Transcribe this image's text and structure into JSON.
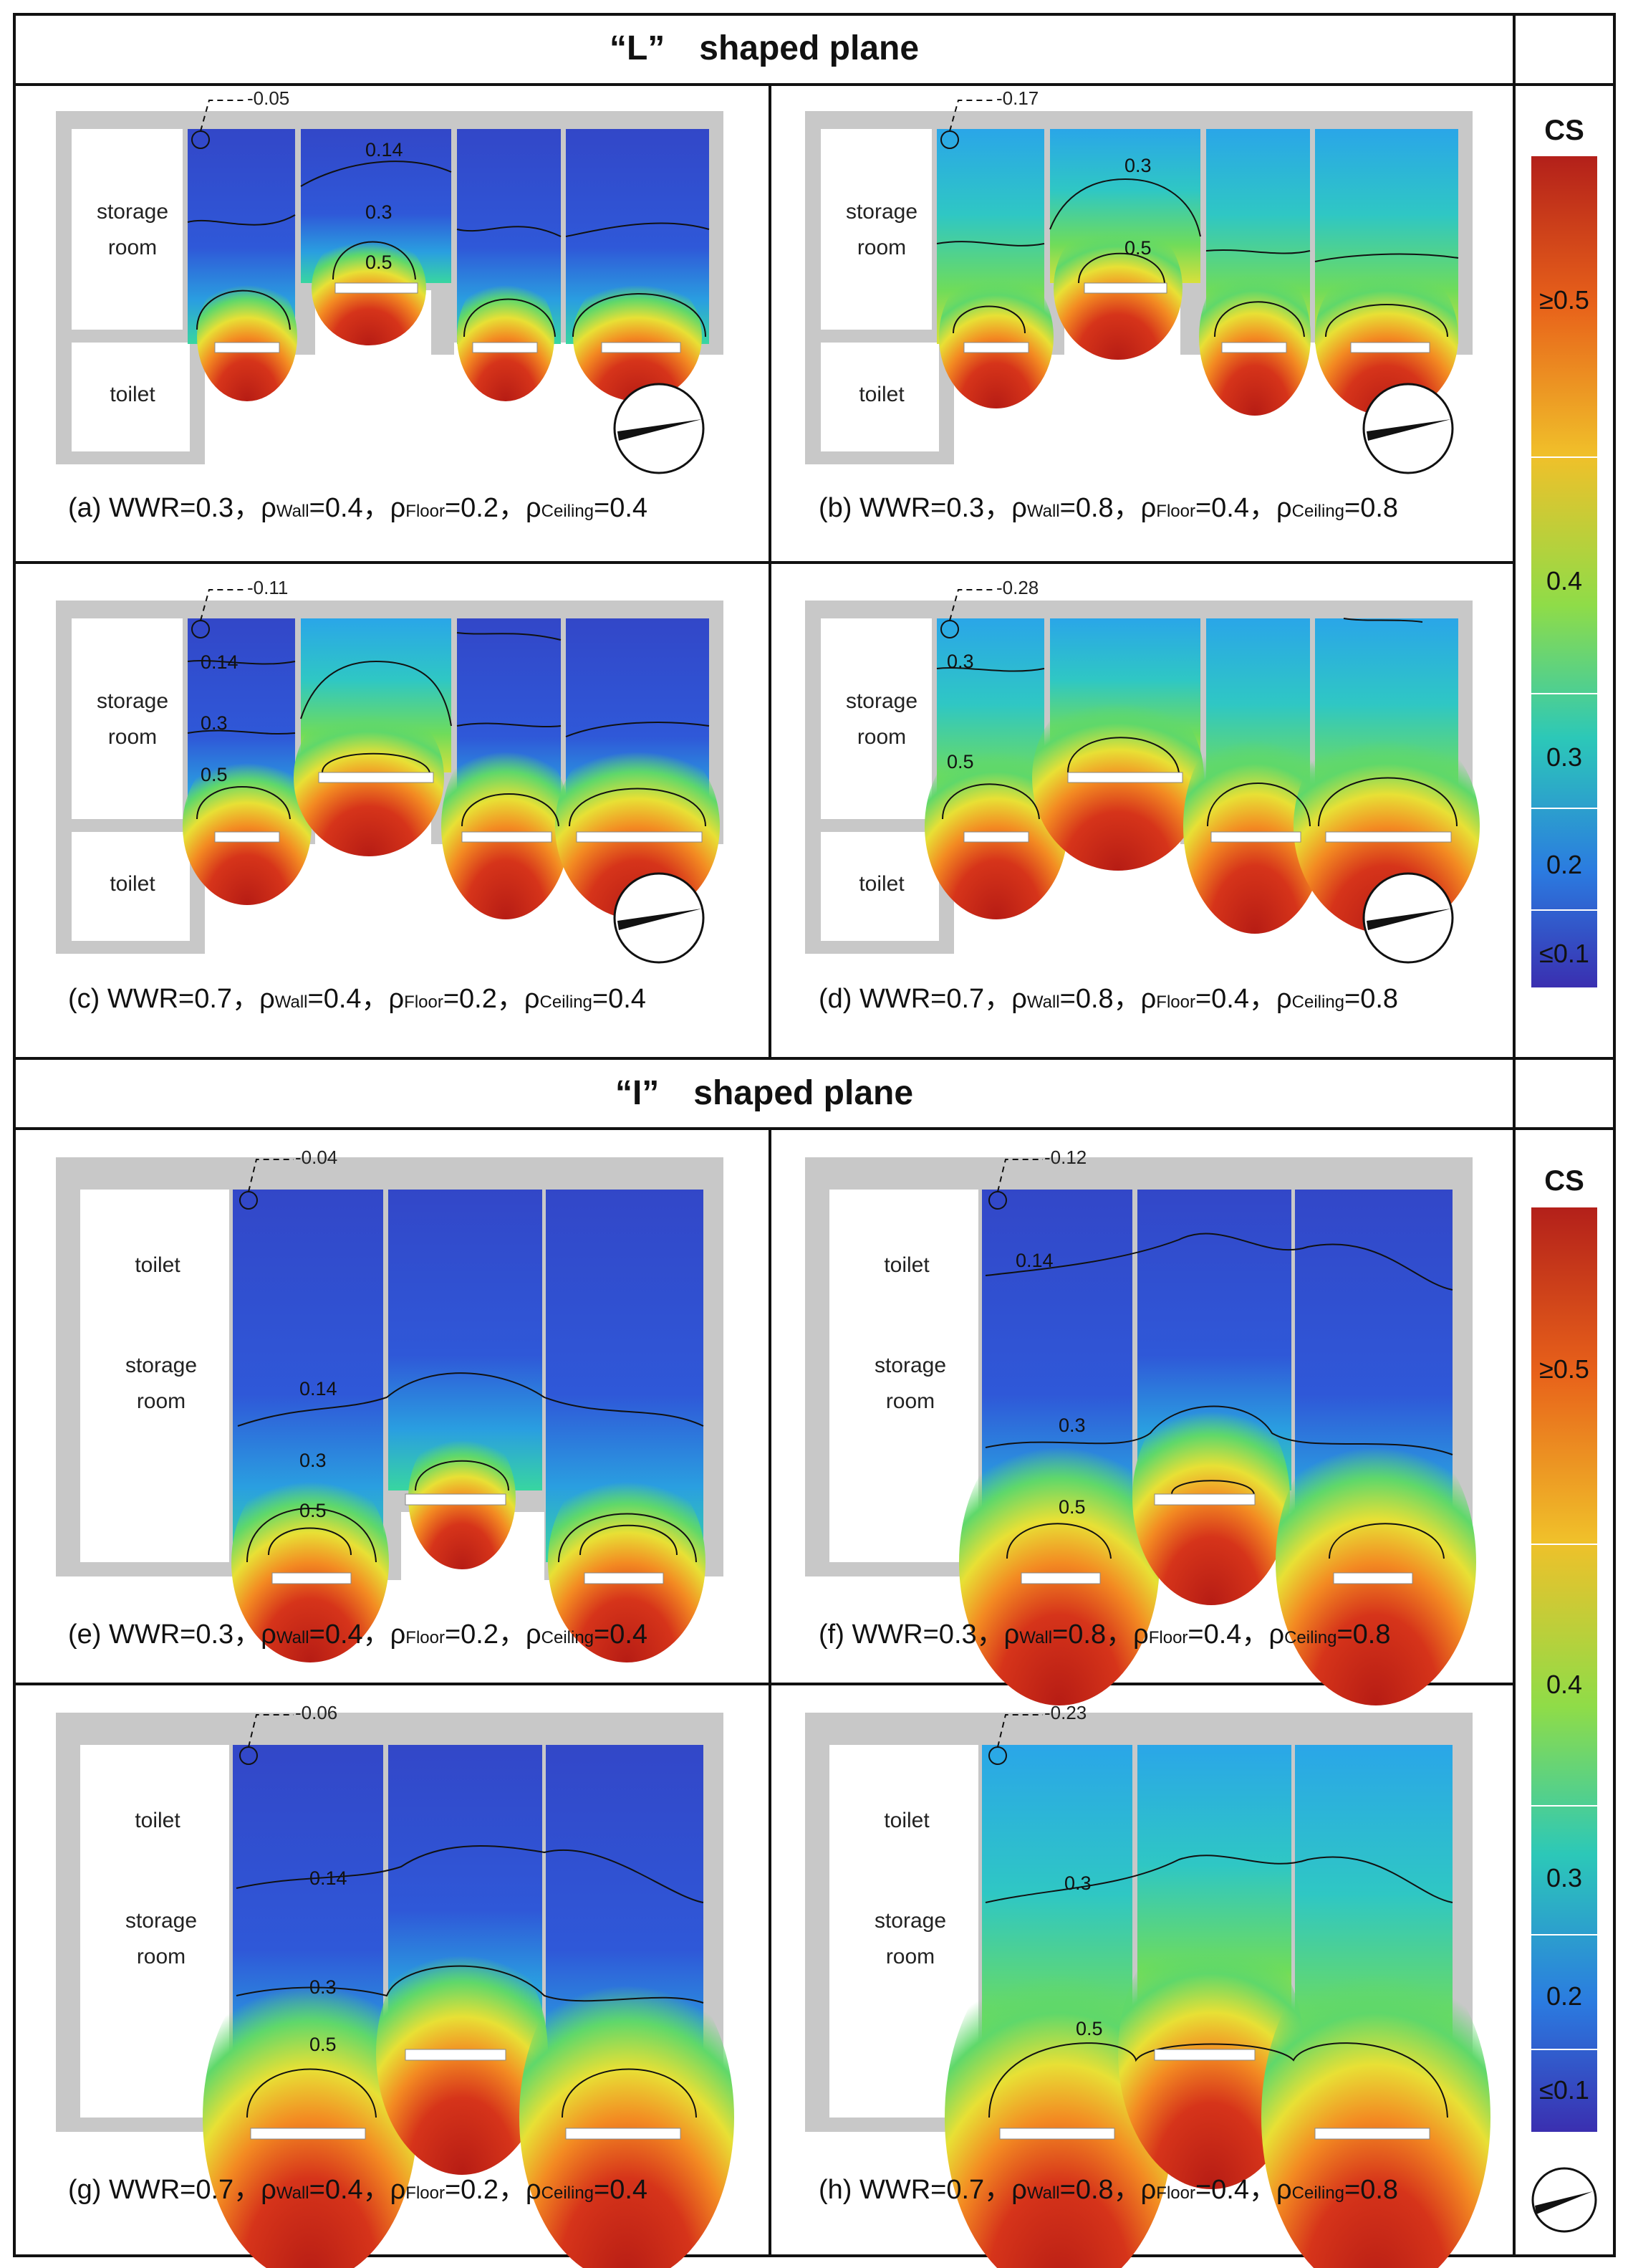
{
  "sections": {
    "l_plane_title": "“L”　shaped plane",
    "i_plane_title": "“I”　shaped plane"
  },
  "colorbar": {
    "title": "CS",
    "labels": [
      "≥0.5",
      "0.4",
      "0.3",
      "0.2",
      "≤0.1"
    ],
    "colors": [
      "#c0231a",
      "#f07a1a",
      "#f3d32a",
      "#58d468",
      "#25c2cc",
      "#2a7ce0",
      "#2f3ec0"
    ]
  },
  "room_labels": {
    "storage_line1": "storage",
    "storage_line2": "room",
    "toilet": "toilet"
  },
  "panels": [
    {
      "id": "a",
      "letter": "(a)",
      "wwr": "WWR=0.3",
      "wall": "=0.4",
      "floor": "=0.2",
      "ceiling": "=0.4",
      "probe": "0.05",
      "contours": [
        "0.14",
        "0.3",
        "0.5"
      ]
    },
    {
      "id": "b",
      "letter": "(b)",
      "wwr": "WWR=0.3",
      "wall": "=0.8",
      "floor": "=0.4",
      "ceiling": "=0.8",
      "probe": "0.17",
      "contours": [
        "0.3",
        "0.5"
      ]
    },
    {
      "id": "c",
      "letter": "(c)",
      "wwr": "WWR=0.7",
      "wall": "=0.4",
      "floor": "=0.2",
      "ceiling": "=0.4",
      "probe": "0.11",
      "contours": [
        "0.14",
        "0.3",
        "0.5"
      ]
    },
    {
      "id": "d",
      "letter": "(d)",
      "wwr": "WWR=0.7",
      "wall": "=0.8",
      "floor": "=0.4",
      "ceiling": "=0.8",
      "probe": "0.28",
      "contours": [
        "0.3",
        "0.5"
      ]
    },
    {
      "id": "e",
      "letter": "(e)",
      "wwr": "WWR=0.3",
      "wall": "=0.4",
      "floor": "=0.2",
      "ceiling": "=0.4",
      "probe": "0.04",
      "contours": [
        "0.14",
        "0.3",
        "0.5"
      ]
    },
    {
      "id": "f",
      "letter": "(f)",
      "wwr": "WWR=0.3",
      "wall": "=0.8",
      "floor": "=0.4",
      "ceiling": "=0.8",
      "probe": "0.12",
      "contours": [
        "0.14",
        "0.3",
        "0.5"
      ]
    },
    {
      "id": "g",
      "letter": "(g)",
      "wwr": "WWR=0.7",
      "wall": "=0.4",
      "floor": "=0.2",
      "ceiling": "=0.4",
      "probe": "0.06",
      "contours": [
        "0.14",
        "0.3",
        "0.5"
      ]
    },
    {
      "id": "h",
      "letter": "(h)",
      "wwr": "WWR=0.7",
      "wall": "=0.8",
      "floor": "=0.4",
      "ceiling": "=0.8",
      "probe": "0.23",
      "contours": [
        "0.3",
        "0.5"
      ]
    }
  ],
  "rho": {
    "symbol": "ρ",
    "wall_sub": "Wall",
    "floor_sub": "Floor",
    "ceiling_sub": "Ceiling",
    "separator": "，"
  }
}
